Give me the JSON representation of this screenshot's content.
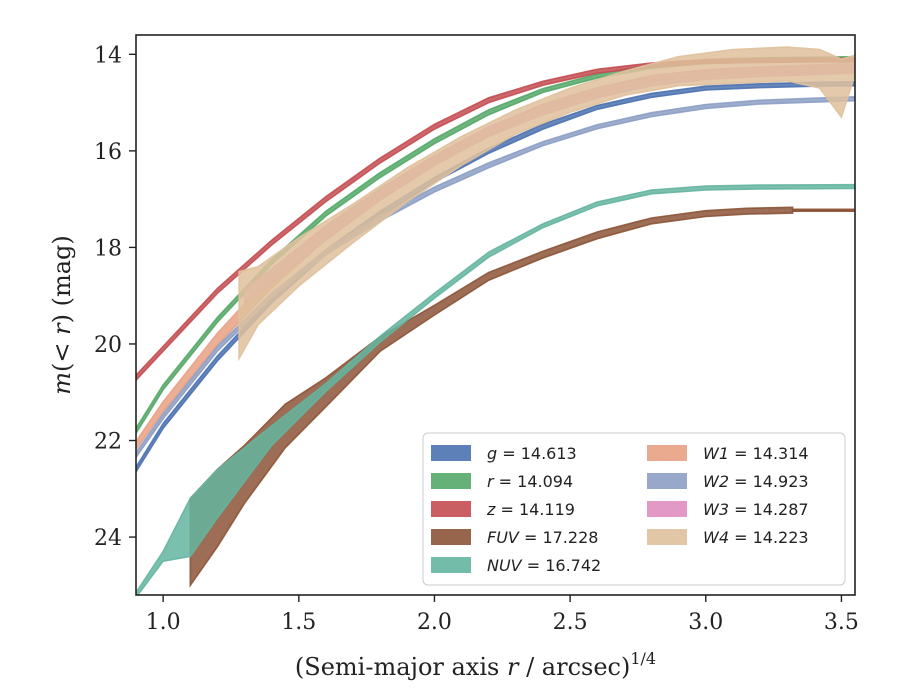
{
  "chart_data": {
    "type": "area",
    "xlabel": "(Semi-major axis r / arcsec)^{1/4}",
    "xlabel_text": {
      "main": "(Semi-major axis ",
      "var": "r",
      "rest": " / arcsec)",
      "sup": "1/4"
    },
    "ylabel_text": {
      "m": "m",
      "mid": "(< ",
      "r": "r",
      "rest": ") (mag)"
    },
    "xlim": [
      0.9,
      3.55
    ],
    "ylim": [
      25.2,
      13.6
    ],
    "y_inverted": true,
    "xticks": [
      1.0,
      1.5,
      2.0,
      2.5,
      3.0,
      3.5
    ],
    "xtick_labels": [
      "1.0",
      "1.5",
      "2.0",
      "2.5",
      "3.0",
      "3.5"
    ],
    "yticks": [
      14,
      16,
      18,
      20,
      22,
      24
    ],
    "ytick_labels": [
      "14",
      "16",
      "18",
      "20",
      "22",
      "24"
    ],
    "grid": false,
    "legend_placement": "lower-right",
    "series": [
      {
        "name": "g = 14.613",
        "label_var": "g",
        "label_val": "14.613",
        "color": "#4c72b0",
        "points": [
          [
            0.9,
            22.6,
            0.05
          ],
          [
            1.0,
            21.7,
            0.05
          ],
          [
            1.2,
            20.3,
            0.05
          ],
          [
            1.4,
            19.1,
            0.05
          ],
          [
            1.6,
            18.1,
            0.05
          ],
          [
            1.8,
            17.3,
            0.05
          ],
          [
            2.0,
            16.6,
            0.05
          ],
          [
            2.2,
            16.0,
            0.05
          ],
          [
            2.4,
            15.5,
            0.05
          ],
          [
            2.6,
            15.1,
            0.04
          ],
          [
            2.8,
            14.85,
            0.04
          ],
          [
            3.0,
            14.7,
            0.04
          ],
          [
            3.2,
            14.65,
            0.04
          ],
          [
            3.4,
            14.62,
            0.04
          ],
          [
            3.55,
            14.61,
            0.04
          ]
        ]
      },
      {
        "name": "r = 14.094",
        "label_var": "r",
        "label_val": "14.094",
        "color": "#55a868",
        "points": [
          [
            0.9,
            21.8,
            0.05
          ],
          [
            1.0,
            20.9,
            0.05
          ],
          [
            1.2,
            19.5,
            0.05
          ],
          [
            1.4,
            18.3,
            0.05
          ],
          [
            1.6,
            17.3,
            0.05
          ],
          [
            1.8,
            16.5,
            0.05
          ],
          [
            2.0,
            15.8,
            0.05
          ],
          [
            2.2,
            15.2,
            0.05
          ],
          [
            2.4,
            14.75,
            0.04
          ],
          [
            2.6,
            14.45,
            0.04
          ],
          [
            2.8,
            14.25,
            0.04
          ],
          [
            3.0,
            14.15,
            0.04
          ],
          [
            3.2,
            14.11,
            0.04
          ],
          [
            3.4,
            14.1,
            0.04
          ],
          [
            3.55,
            14.09,
            0.04
          ]
        ]
      },
      {
        "name": "z = 14.119",
        "label_var": "z",
        "label_val": "14.119",
        "color": "#c44e52",
        "points": [
          [
            0.9,
            20.7,
            0.05
          ],
          [
            1.0,
            20.1,
            0.05
          ],
          [
            1.2,
            18.9,
            0.05
          ],
          [
            1.4,
            17.9,
            0.05
          ],
          [
            1.6,
            17.0,
            0.05
          ],
          [
            1.8,
            16.2,
            0.05
          ],
          [
            2.0,
            15.5,
            0.05
          ],
          [
            2.2,
            14.95,
            0.05
          ],
          [
            2.4,
            14.6,
            0.04
          ],
          [
            2.6,
            14.35,
            0.04
          ],
          [
            2.8,
            14.22,
            0.04
          ],
          [
            3.0,
            14.15,
            0.04
          ],
          [
            3.2,
            14.13,
            0.04
          ],
          [
            3.4,
            14.12,
            0.04
          ],
          [
            3.55,
            14.12,
            0.04
          ]
        ]
      },
      {
        "name": "FUV = 17.228",
        "label_var": "FUV",
        "label_val": "17.228",
        "color": "#8c5437",
        "points": [
          [
            1.1,
            24.1,
            0.9
          ],
          [
            1.2,
            23.4,
            0.8
          ],
          [
            1.3,
            22.7,
            0.6
          ],
          [
            1.45,
            21.7,
            0.45
          ],
          [
            1.6,
            21.0,
            0.3
          ],
          [
            1.8,
            20.0,
            0.15
          ],
          [
            2.0,
            19.3,
            0.1
          ],
          [
            2.2,
            18.6,
            0.08
          ],
          [
            2.4,
            18.15,
            0.07
          ],
          [
            2.6,
            17.75,
            0.07
          ],
          [
            2.8,
            17.45,
            0.06
          ],
          [
            3.0,
            17.3,
            0.06
          ],
          [
            3.15,
            17.25,
            0.06
          ],
          [
            3.32,
            17.23,
            0.06
          ]
        ]
      },
      {
        "name": "FUV_ext",
        "line_only": true,
        "color": "#8c5437",
        "points": [
          [
            3.32,
            17.23,
            0.02
          ],
          [
            3.55,
            17.23,
            0.02
          ]
        ]
      },
      {
        "name": "NUV = 16.742",
        "label_var": "NUV",
        "label_val": "16.742",
        "color": "#64b5a0",
        "points": [
          [
            0.9,
            25.2,
            0.05
          ],
          [
            1.0,
            24.4,
            0.1
          ],
          [
            1.1,
            23.8,
            0.6
          ],
          [
            1.2,
            23.1,
            0.5
          ],
          [
            1.4,
            21.9,
            0.2
          ],
          [
            1.6,
            20.9,
            0.08
          ],
          [
            1.8,
            19.9,
            0.06
          ],
          [
            2.0,
            19.0,
            0.05
          ],
          [
            2.2,
            18.15,
            0.05
          ],
          [
            2.4,
            17.55,
            0.04
          ],
          [
            2.6,
            17.1,
            0.04
          ],
          [
            2.8,
            16.85,
            0.04
          ],
          [
            3.0,
            16.77,
            0.04
          ],
          [
            3.2,
            16.75,
            0.04
          ],
          [
            3.55,
            16.74,
            0.04
          ]
        ]
      },
      {
        "name": "W1 = 14.314",
        "label_var": "W1",
        "label_val": "14.314",
        "color": "#e8a184",
        "points": [
          [
            0.9,
            22.1,
            0.08
          ],
          [
            1.0,
            21.3,
            0.1
          ],
          [
            1.2,
            19.9,
            0.12
          ],
          [
            1.4,
            18.7,
            0.14
          ],
          [
            1.6,
            17.7,
            0.14
          ],
          [
            1.8,
            16.9,
            0.12
          ],
          [
            2.0,
            16.2,
            0.1
          ],
          [
            2.2,
            15.6,
            0.08
          ],
          [
            2.4,
            15.1,
            0.07
          ],
          [
            2.6,
            14.75,
            0.06
          ],
          [
            2.8,
            14.5,
            0.06
          ],
          [
            3.0,
            14.38,
            0.06
          ],
          [
            3.2,
            14.33,
            0.06
          ],
          [
            3.4,
            14.32,
            0.06
          ],
          [
            3.55,
            14.31,
            0.06
          ]
        ]
      },
      {
        "name": "W2 = 14.923",
        "label_var": "W2",
        "label_val": "14.923",
        "color": "#8c9fc4",
        "points": [
          [
            0.9,
            22.3,
            0.05
          ],
          [
            1.0,
            21.5,
            0.05
          ],
          [
            1.2,
            20.1,
            0.05
          ],
          [
            1.4,
            19.0,
            0.05
          ],
          [
            1.6,
            18.1,
            0.05
          ],
          [
            1.8,
            17.4,
            0.05
          ],
          [
            2.0,
            16.8,
            0.05
          ],
          [
            2.2,
            16.3,
            0.05
          ],
          [
            2.4,
            15.85,
            0.04
          ],
          [
            2.6,
            15.5,
            0.04
          ],
          [
            2.8,
            15.25,
            0.04
          ],
          [
            3.0,
            15.08,
            0.04
          ],
          [
            3.2,
            14.99,
            0.04
          ],
          [
            3.4,
            14.95,
            0.04
          ],
          [
            3.55,
            14.92,
            0.04
          ]
        ]
      },
      {
        "name": "W3 = 14.287",
        "label_var": "W3",
        "label_val": "14.287",
        "color": "#e08ec0",
        "points": [
          [
            1.3,
            19.0,
            0.15
          ],
          [
            1.4,
            18.6,
            0.15
          ],
          [
            1.6,
            17.7,
            0.15
          ],
          [
            1.8,
            16.9,
            0.12
          ],
          [
            2.0,
            16.2,
            0.1
          ],
          [
            2.2,
            15.6,
            0.1
          ],
          [
            2.4,
            15.15,
            0.1
          ],
          [
            2.6,
            14.8,
            0.1
          ],
          [
            2.8,
            14.55,
            0.1
          ],
          [
            3.0,
            14.42,
            0.1
          ],
          [
            3.2,
            14.36,
            0.1
          ],
          [
            3.4,
            14.32,
            0.1
          ],
          [
            3.55,
            14.29,
            0.1
          ]
        ]
      },
      {
        "name": "W4 = 14.223",
        "label_var": "W4",
        "label_val": "14.223",
        "color": "#dfc19c",
        "points": [
          [
            1.28,
            19.4,
            0.9
          ],
          [
            1.35,
            19.0,
            0.6
          ],
          [
            1.5,
            18.3,
            0.5
          ],
          [
            1.7,
            17.5,
            0.4
          ],
          [
            1.9,
            16.7,
            0.35
          ],
          [
            2.1,
            16.0,
            0.3
          ],
          [
            2.3,
            15.4,
            0.25
          ],
          [
            2.5,
            14.95,
            0.25
          ],
          [
            2.7,
            14.6,
            0.25
          ],
          [
            2.9,
            14.35,
            0.3
          ],
          [
            3.1,
            14.25,
            0.35
          ],
          [
            3.3,
            14.2,
            0.35
          ],
          [
            3.42,
            14.3,
            0.4
          ],
          [
            3.5,
            14.7,
            0.6
          ],
          [
            3.55,
            14.22,
            0.2
          ]
        ]
      }
    ]
  }
}
